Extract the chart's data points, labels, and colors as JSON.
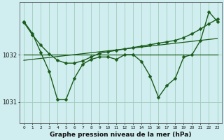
{
  "bg_color": "#d0eef0",
  "grid_color": "#a0ccbb",
  "line_color": "#1a5c1a",
  "title": "Graphe pression niveau de la mer (hPa)",
  "xlabel_hours": [
    0,
    1,
    2,
    3,
    4,
    5,
    6,
    7,
    8,
    9,
    10,
    11,
    12,
    13,
    14,
    15,
    16,
    17,
    18,
    19,
    20,
    21,
    22,
    23
  ],
  "ylim": [
    1030.55,
    1033.1
  ],
  "yticks": [
    1031,
    1032
  ],
  "series_main": [
    1032.7,
    1032.45,
    1032.05,
    1031.65,
    1031.05,
    1031.05,
    1031.5,
    1031.8,
    1031.9,
    1031.95,
    1031.95,
    1031.9,
    1032.0,
    1032.0,
    1031.85,
    1031.55,
    1031.1,
    1031.35,
    1031.5,
    1031.95,
    1032.0,
    1032.3,
    1032.9,
    1032.7
  ],
  "series_smooth": [
    1032.68,
    1032.42,
    1032.2,
    1032.02,
    1031.88,
    1031.82,
    1031.82,
    1031.87,
    1031.95,
    1032.03,
    1032.06,
    1032.09,
    1032.12,
    1032.15,
    1032.18,
    1032.21,
    1032.24,
    1032.27,
    1032.3,
    1032.36,
    1032.44,
    1032.54,
    1032.65,
    1032.75
  ],
  "series_flat": [
    1032.0,
    1032.0,
    1032.0,
    1032.0,
    1032.0,
    1032.0,
    1032.0,
    1032.0,
    1032.0,
    1032.0,
    1032.0,
    1032.0,
    1032.0,
    1032.0,
    1032.0,
    1032.0,
    1032.0,
    1032.0,
    1032.0,
    1032.0,
    1032.0,
    1032.0,
    1032.0,
    1032.0
  ],
  "series_trend": [
    1031.88,
    1031.9,
    1031.92,
    1031.94,
    1031.96,
    1031.98,
    1032.0,
    1032.02,
    1032.04,
    1032.06,
    1032.08,
    1032.1,
    1032.12,
    1032.14,
    1032.16,
    1032.18,
    1032.2,
    1032.22,
    1032.24,
    1032.26,
    1032.28,
    1032.3,
    1032.32,
    1032.34
  ]
}
